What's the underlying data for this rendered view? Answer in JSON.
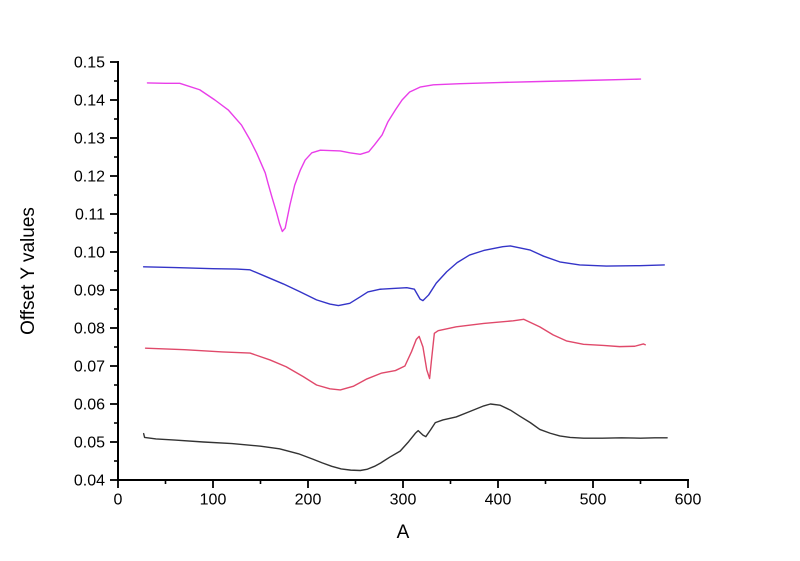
{
  "page": {
    "background": "#ffffff"
  },
  "chart_data": {
    "type": "line",
    "title": "",
    "xlabel": "A",
    "ylabel": "Offset Y values",
    "xlim": [
      0,
      600
    ],
    "ylim": [
      0.04,
      0.15
    ],
    "grid": false,
    "legend": "none",
    "axis_color": "#000000",
    "x_major_ticks": [
      0,
      100,
      200,
      300,
      400,
      500,
      600
    ],
    "x_tick_labels": [
      "0",
      "100",
      "200",
      "300",
      "400",
      "500",
      "600"
    ],
    "x_minor_ticks": [
      50,
      150,
      250,
      350,
      450,
      550
    ],
    "y_major_ticks": [
      0.04,
      0.05,
      0.06,
      0.07,
      0.08,
      0.09,
      0.1,
      0.11,
      0.12,
      0.13,
      0.14,
      0.15
    ],
    "y_tick_labels": [
      "0.04",
      "0.05",
      "0.06",
      "0.07",
      "0.08",
      "0.09",
      "0.10",
      "0.11",
      "0.12",
      "0.13",
      "0.14",
      "0.15"
    ],
    "y_minor_ticks": [
      0.045,
      0.055,
      0.065,
      0.075,
      0.085,
      0.095,
      0.105,
      0.115,
      0.125,
      0.135,
      0.145
    ],
    "series": [
      {
        "name": "curve-black",
        "color": "#333333",
        "points": [
          [
            27,
            0.0522
          ],
          [
            28,
            0.0512
          ],
          [
            40,
            0.0508
          ],
          [
            60,
            0.0505
          ],
          [
            90,
            0.05
          ],
          [
            120,
            0.0496
          ],
          [
            150,
            0.0489
          ],
          [
            170,
            0.0482
          ],
          [
            190,
            0.0469
          ],
          [
            205,
            0.0455
          ],
          [
            215,
            0.0445
          ],
          [
            225,
            0.0436
          ],
          [
            235,
            0.0429
          ],
          [
            245,
            0.0426
          ],
          [
            255,
            0.0425
          ],
          [
            262,
            0.0428
          ],
          [
            270,
            0.0436
          ],
          [
            276,
            0.0444
          ],
          [
            286,
            0.046
          ],
          [
            297,
            0.0476
          ],
          [
            306,
            0.0501
          ],
          [
            313,
            0.0523
          ],
          [
            316,
            0.053
          ],
          [
            321,
            0.0518
          ],
          [
            324,
            0.0514
          ],
          [
            329,
            0.0532
          ],
          [
            334,
            0.0551
          ],
          [
            342,
            0.0558
          ],
          [
            356,
            0.0566
          ],
          [
            370,
            0.058
          ],
          [
            385,
            0.0595
          ],
          [
            392,
            0.06
          ],
          [
            402,
            0.0597
          ],
          [
            413,
            0.0584
          ],
          [
            423,
            0.0568
          ],
          [
            434,
            0.0551
          ],
          [
            444,
            0.0533
          ],
          [
            455,
            0.0523
          ],
          [
            465,
            0.0516
          ],
          [
            476,
            0.0512
          ],
          [
            490,
            0.051
          ],
          [
            510,
            0.051
          ],
          [
            530,
            0.0511
          ],
          [
            550,
            0.051
          ],
          [
            565,
            0.0511
          ],
          [
            578,
            0.0511
          ]
        ]
      },
      {
        "name": "curve-red",
        "color": "#E0496A",
        "points": [
          [
            29,
            0.0747
          ],
          [
            70,
            0.0743
          ],
          [
            110,
            0.0737
          ],
          [
            139,
            0.0734
          ],
          [
            160,
            0.0716
          ],
          [
            177,
            0.0698
          ],
          [
            195,
            0.0672
          ],
          [
            209,
            0.065
          ],
          [
            223,
            0.064
          ],
          [
            234,
            0.0637
          ],
          [
            248,
            0.0647
          ],
          [
            262,
            0.0666
          ],
          [
            277,
            0.0681
          ],
          [
            292,
            0.0688
          ],
          [
            302,
            0.07
          ],
          [
            309,
            0.0738
          ],
          [
            314,
            0.077
          ],
          [
            317,
            0.0778
          ],
          [
            321,
            0.075
          ],
          [
            325,
            0.069
          ],
          [
            328,
            0.0667
          ],
          [
            330,
            0.0716
          ],
          [
            333,
            0.0786
          ],
          [
            337,
            0.0793
          ],
          [
            356,
            0.0803
          ],
          [
            385,
            0.0812
          ],
          [
            416,
            0.0819
          ],
          [
            427,
            0.0823
          ],
          [
            444,
            0.0803
          ],
          [
            458,
            0.0782
          ],
          [
            472,
            0.0766
          ],
          [
            490,
            0.0757
          ],
          [
            511,
            0.0754
          ],
          [
            528,
            0.0751
          ],
          [
            544,
            0.0752
          ],
          [
            553,
            0.0758
          ],
          [
            555,
            0.0756
          ]
        ]
      },
      {
        "name": "curve-blue",
        "color": "#3434C8",
        "points": [
          [
            27,
            0.0961
          ],
          [
            60,
            0.0959
          ],
          [
            100,
            0.0956
          ],
          [
            125,
            0.0955
          ],
          [
            139,
            0.0953
          ],
          [
            156,
            0.0935
          ],
          [
            174,
            0.0916
          ],
          [
            191,
            0.0896
          ],
          [
            209,
            0.0874
          ],
          [
            223,
            0.0863
          ],
          [
            232,
            0.0859
          ],
          [
            244,
            0.0865
          ],
          [
            255,
            0.0882
          ],
          [
            263,
            0.0895
          ],
          [
            276,
            0.0902
          ],
          [
            290,
            0.0904
          ],
          [
            304,
            0.0906
          ],
          [
            312,
            0.0902
          ],
          [
            318,
            0.0876
          ],
          [
            321,
            0.0872
          ],
          [
            327,
            0.0887
          ],
          [
            335,
            0.0918
          ],
          [
            346,
            0.0948
          ],
          [
            357,
            0.0972
          ],
          [
            370,
            0.0992
          ],
          [
            385,
            0.1004
          ],
          [
            405,
            0.1014
          ],
          [
            413,
            0.1016
          ],
          [
            434,
            0.1005
          ],
          [
            448,
            0.0989
          ],
          [
            465,
            0.0974
          ],
          [
            486,
            0.0966
          ],
          [
            514,
            0.0963
          ],
          [
            549,
            0.0964
          ],
          [
            575,
            0.0966
          ]
        ]
      },
      {
        "name": "curve-magenta",
        "color": "#E93EE9",
        "points": [
          [
            31,
            0.1445
          ],
          [
            50,
            0.1444
          ],
          [
            65,
            0.1444
          ],
          [
            86,
            0.1427
          ],
          [
            102,
            0.14
          ],
          [
            116,
            0.1374
          ],
          [
            130,
            0.1334
          ],
          [
            139,
            0.1295
          ],
          [
            146,
            0.126
          ],
          [
            155,
            0.1208
          ],
          [
            158,
            0.118
          ],
          [
            162,
            0.1145
          ],
          [
            167,
            0.1103
          ],
          [
            170,
            0.1075
          ],
          [
            173,
            0.1054
          ],
          [
            176,
            0.1063
          ],
          [
            181,
            0.1124
          ],
          [
            186,
            0.1176
          ],
          [
            192,
            0.1216
          ],
          [
            197,
            0.1242
          ],
          [
            204,
            0.1261
          ],
          [
            213,
            0.1268
          ],
          [
            223,
            0.1267
          ],
          [
            234,
            0.1266
          ],
          [
            244,
            0.1261
          ],
          [
            255,
            0.1257
          ],
          [
            264,
            0.1264
          ],
          [
            270,
            0.1282
          ],
          [
            278,
            0.1308
          ],
          [
            284,
            0.1342
          ],
          [
            292,
            0.1374
          ],
          [
            299,
            0.14
          ],
          [
            307,
            0.1421
          ],
          [
            318,
            0.1434
          ],
          [
            332,
            0.144
          ],
          [
            360,
            0.1443
          ],
          [
            400,
            0.1446
          ],
          [
            450,
            0.1449
          ],
          [
            500,
            0.1452
          ],
          [
            535,
            0.1454
          ],
          [
            550,
            0.1455
          ]
        ]
      }
    ]
  }
}
